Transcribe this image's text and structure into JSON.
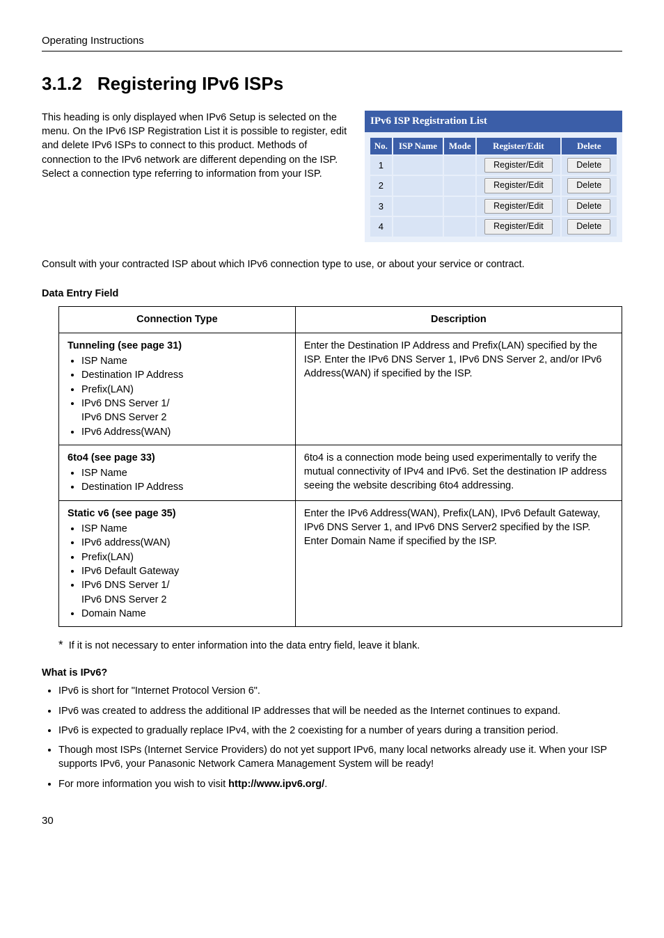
{
  "header": {
    "running": "Operating Instructions"
  },
  "title": {
    "number": "3.1.2",
    "text": "Registering IPv6 ISPs"
  },
  "intro": "This heading is only displayed when IPv6 Setup is selected on the menu. On the IPv6 ISP Registration List it is possible to register, edit and delete IPv6 ISPs to connect to this product. Methods of connection to the IPv6 network are different depending on the ISP. Select a connection type referring to information from your ISP.",
  "reglist": {
    "title": "IPv6 ISP Registration List",
    "headers": {
      "no": "No.",
      "isp": "ISP Name",
      "mode": "Mode",
      "reg": "Register/Edit",
      "del": "Delete"
    },
    "btn": {
      "reg": "Register/Edit",
      "del": "Delete"
    },
    "rows": [
      {
        "no": "1"
      },
      {
        "no": "2"
      },
      {
        "no": "3"
      },
      {
        "no": "4"
      }
    ]
  },
  "consult": "Consult with your contracted ISP about which IPv6 connection type to use, or about your service or contract.",
  "def_title": "Data Entry Field",
  "def_headers": {
    "ct": "Connection Type",
    "desc": "Description"
  },
  "def_rows": [
    {
      "heading": "Tunneling (see page 31)",
      "items": [
        "ISP Name",
        "Destination IP Address",
        "Prefix(LAN)",
        "IPv6 DNS Server 1/\nIPv6 DNS Server 2",
        "IPv6 Address(WAN)"
      ],
      "desc": "Enter the Destination IP Address and Prefix(LAN) specified by the ISP. Enter the IPv6 DNS Server 1, IPv6 DNS Server 2, and/or IPv6 Address(WAN) if specified by the ISP."
    },
    {
      "heading": "6to4 (see page 33)",
      "items": [
        "ISP Name",
        "Destination IP Address"
      ],
      "desc": "6to4 is a connection mode being used experimentally to verify the mutual connectivity of IPv4 and IPv6. Set the destination IP address seeing the website describing 6to4 addressing."
    },
    {
      "heading": "Static v6 (see page 35)",
      "items": [
        "ISP Name",
        "IPv6 address(WAN)",
        "Prefix(LAN)",
        "IPv6 Default Gateway",
        "IPv6 DNS Server 1/\nIPv6 DNS Server 2",
        "Domain Name"
      ],
      "desc": "Enter the IPv6 Address(WAN), Prefix(LAN), IPv6 Default Gateway, IPv6 DNS Server 1, and IPv6 DNS Server2 specified by the ISP. Enter Domain Name if specified by the ISP."
    }
  ],
  "star_note": "If it is not necessary to enter information into the data entry field, leave it blank.",
  "what_title": "What is IPv6?",
  "what_items": [
    "IPv6 is short for \"Internet Protocol Version 6\".",
    "IPv6 was created to address the additional IP addresses that will be needed as the Internet continues to expand.",
    "IPv6 is expected to gradually replace IPv4, with the 2 coexisting for a number of years during a transition period.",
    "Though most ISPs (Internet Service Providers) do not yet support IPv6, many local networks already use it. When your ISP supports IPv6, your Panasonic Network Camera Management System will be ready!",
    {
      "pre": "For more information you wish to visit ",
      "bold": "http://www.ipv6.org/",
      "post": "."
    }
  ],
  "pagenum": "30"
}
